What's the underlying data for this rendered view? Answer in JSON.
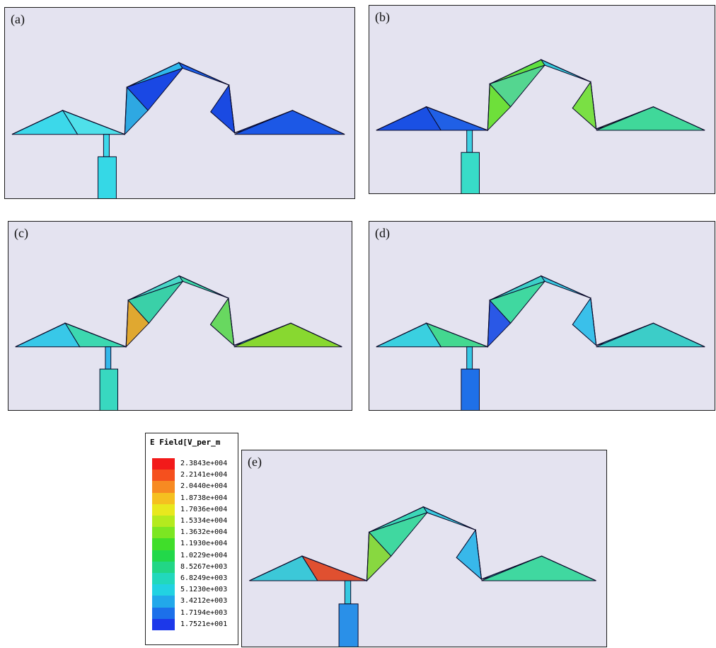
{
  "panels": [
    {
      "id": "a",
      "label": "(a)",
      "colors": {
        "t1": "#3cd8ea",
        "t2": "#4fe0ea",
        "t3": "#2ea8e2",
        "t4": "#2fb8ec",
        "t5": "#1a5ee8",
        "t6": "#3cd0ec",
        "t7": "#1a4fe6",
        "t8": "#1c58e6",
        "t9": "#1a48e4",
        "t10": "#1a4ae2",
        "stem": "#3cd8ea",
        "pad": "#35d8e6"
      }
    },
    {
      "id": "b",
      "label": "(b)",
      "colors": {
        "t1": "#1a50e4",
        "t2": "#2060e6",
        "t3": "#6ee03a",
        "t4": "#60e040",
        "t5": "#36c8d8",
        "t6": "#58d86a",
        "t7": "#8ee038",
        "t8": "#40d89a",
        "t9": "#54d690",
        "t10": "#7ae044",
        "stem": "#40d0e2",
        "pad": "#38dcc8"
      }
    },
    {
      "id": "c",
      "label": "(c)",
      "colors": {
        "t1": "#38c8e8",
        "t2": "#3cd8b0",
        "t3": "#e0a830",
        "t4": "#4ad8c8",
        "t5": "#3ed8a8",
        "t6": "#a0d838",
        "t7": "#36c8e6",
        "t8": "#88d830",
        "t9": "#3ad0a8",
        "t10": "#68d860",
        "stem": "#34b8ea",
        "pad": "#38d8c0"
      }
    },
    {
      "id": "d",
      "label": "(d)",
      "colors": {
        "t1": "#3ad0e0",
        "t2": "#44d890",
        "t3": "#2a58e6",
        "t4": "#3cd0c8",
        "t5": "#3ac8e0",
        "t6": "#44d8a8",
        "t7": "#2ec0ea",
        "t8": "#3ccdc8",
        "t9": "#40d8a0",
        "t10": "#3ac0ea",
        "stem": "#38c8e4",
        "pad": "#1f70e8"
      }
    },
    {
      "id": "e",
      "label": "(e)",
      "colors": {
        "t1": "#3cc8d8",
        "t2": "#e05030",
        "t3": "#88d840",
        "t4": "#3cd8b8",
        "t5": "#3acae0",
        "t6": "#3cd0d0",
        "t7": "#3ccae0",
        "t8": "#40d8a0",
        "t9": "#40d8a0",
        "t10": "#38b8ea",
        "stem": "#36c8e0",
        "pad": "#2a90e8"
      }
    }
  ],
  "legend": {
    "title": "E Field[V_per_m",
    "entries": [
      {
        "value": "2.3843e+004",
        "color": "#f21a1a"
      },
      {
        "value": "2.2141e+004",
        "color": "#f5501e"
      },
      {
        "value": "2.0440e+004",
        "color": "#f78a22"
      },
      {
        "value": "1.8738e+004",
        "color": "#f5c020"
      },
      {
        "value": "1.7036e+004",
        "color": "#e8e81e"
      },
      {
        "value": "1.5334e+004",
        "color": "#b4ea1e"
      },
      {
        "value": "1.3632e+004",
        "color": "#7ce622"
      },
      {
        "value": "1.1930e+004",
        "color": "#40de2a"
      },
      {
        "value": "1.0229e+004",
        "color": "#22d84a"
      },
      {
        "value": "8.5267e+003",
        "color": "#22d686"
      },
      {
        "value": "6.8249e+003",
        "color": "#22d8bc"
      },
      {
        "value": "5.1230e+003",
        "color": "#22d2e2"
      },
      {
        "value": "3.4212e+003",
        "color": "#22a8ea"
      },
      {
        "value": "1.7194e+003",
        "color": "#1c70ea"
      },
      {
        "value": "1.7521e+001",
        "color": "#1c38ea"
      }
    ]
  }
}
